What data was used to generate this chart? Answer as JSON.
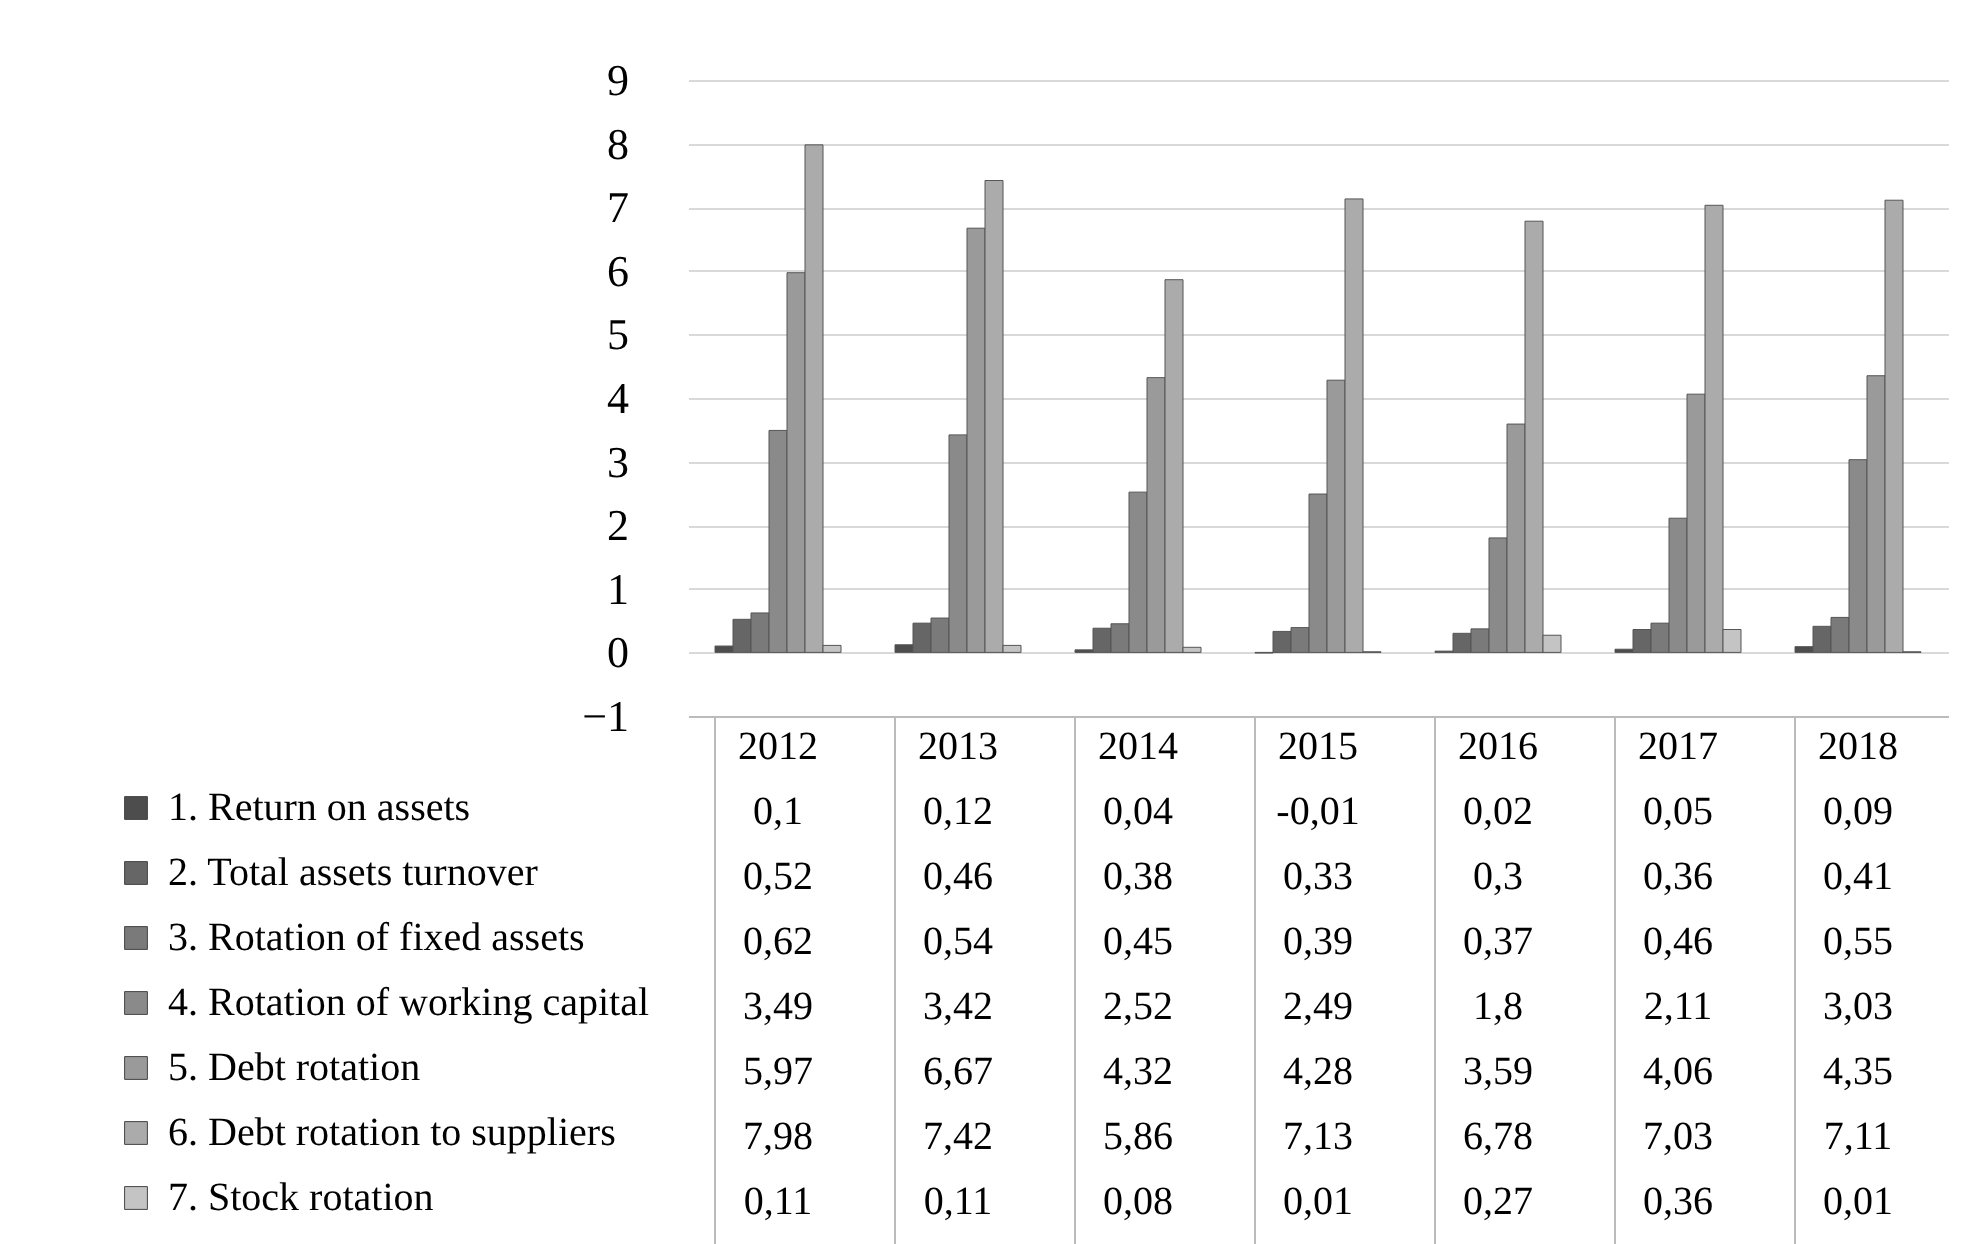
{
  "chart_data": {
    "type": "bar",
    "categories": [
      "2012",
      "2013",
      "2014",
      "2015",
      "2016",
      "2017",
      "2018"
    ],
    "series": [
      {
        "name": "1. Return on assets",
        "color": "#4d4d4d",
        "values": [
          0.1,
          0.12,
          0.04,
          -0.01,
          0.02,
          0.05,
          0.09
        ],
        "value_labels": [
          "0,1",
          "0,12",
          "0,04",
          "-0,01",
          "0,02",
          "0,05",
          "0,09"
        ]
      },
      {
        "name": "2. Total assets turnover",
        "color": "#666666",
        "values": [
          0.52,
          0.46,
          0.38,
          0.33,
          0.3,
          0.36,
          0.41
        ],
        "value_labels": [
          "0,52",
          "0,46",
          "0,38",
          "0,33",
          "0,3",
          "0,36",
          "0,41"
        ]
      },
      {
        "name": "3. Rotation of fixed assets",
        "color": "#7a7a7a",
        "values": [
          0.62,
          0.54,
          0.45,
          0.39,
          0.37,
          0.46,
          0.55
        ],
        "value_labels": [
          "0,62",
          "0,54",
          "0,45",
          "0,39",
          "0,37",
          "0,46",
          "0,55"
        ]
      },
      {
        "name": "4. Rotation of working capital",
        "color": "#8a8a8a",
        "values": [
          3.49,
          3.42,
          2.52,
          2.49,
          1.8,
          2.11,
          3.03
        ],
        "value_labels": [
          "3,49",
          "3,42",
          "2,52",
          "2,49",
          "1,8",
          "2,11",
          "3,03"
        ]
      },
      {
        "name": "5. Debt rotation",
        "color": "#9a9a9a",
        "values": [
          5.97,
          6.67,
          4.32,
          4.28,
          3.59,
          4.06,
          4.35
        ],
        "value_labels": [
          "5,97",
          "6,67",
          "4,32",
          "4,28",
          "3,59",
          "4,06",
          "4,35"
        ]
      },
      {
        "name": "6. Debt rotation to suppliers",
        "color": "#ababab",
        "values": [
          7.98,
          7.42,
          5.86,
          7.13,
          6.78,
          7.03,
          7.11
        ],
        "value_labels": [
          "7,98",
          "7,42",
          "5,86",
          "7,13",
          "6,78",
          "7,03",
          "7,11"
        ]
      },
      {
        "name": "7. Stock rotation",
        "color": "#c4c4c4",
        "values": [
          0.11,
          0.11,
          0.08,
          0.01,
          0.27,
          0.36,
          0.01
        ],
        "value_labels": [
          "0,11",
          "0,11",
          "0,08",
          "0,01",
          "0,27",
          "0,36",
          "0,01"
        ]
      }
    ],
    "ylim": [
      -1,
      9
    ],
    "yticks": [
      -1,
      0,
      1,
      2,
      3,
      4,
      5,
      6,
      7,
      8,
      9
    ],
    "grid": "y",
    "legend": "bottom left"
  }
}
